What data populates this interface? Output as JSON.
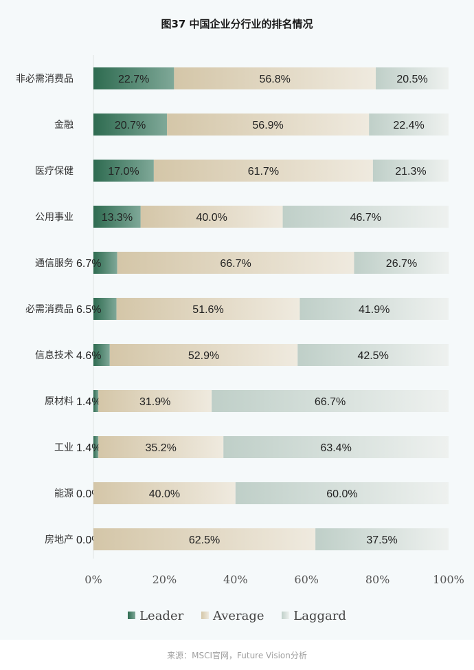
{
  "chart_data": {
    "type": "bar",
    "orientation": "horizontal",
    "stacked": true,
    "title": "图37 中国企业分行业的排名情况",
    "categories": [
      "非必需消费品",
      "金融",
      "医疗保健",
      "公用事业",
      "通信服务",
      "必需消费品",
      "信息技术",
      "原材料",
      "工业",
      "能源",
      "房地产"
    ],
    "series": [
      {
        "name": "Leader",
        "values": [
          22.7,
          20.7,
          17.0,
          13.3,
          6.7,
          6.5,
          4.6,
          1.4,
          1.4,
          0.0,
          0.0
        ],
        "color": "#3d7a60"
      },
      {
        "name": "Average",
        "values": [
          56.8,
          56.9,
          61.7,
          40.0,
          66.7,
          51.6,
          52.9,
          31.9,
          35.2,
          40.0,
          62.5
        ],
        "color": "#d9cdb5"
      },
      {
        "name": "Laggard",
        "values": [
          20.5,
          22.4,
          21.3,
          46.7,
          26.7,
          41.9,
          42.5,
          66.7,
          63.4,
          60.0,
          37.5
        ],
        "color": "#c5d3cd"
      }
    ],
    "labels": [
      [
        "22.7%",
        "56.8%",
        "20.5%"
      ],
      [
        "20.7%",
        "56.9%",
        "22.4%"
      ],
      [
        "17.0%",
        "61.7%",
        "21.3%"
      ],
      [
        "13.3%",
        "40.0%",
        "46.7%"
      ],
      [
        "6.7%",
        "66.7%",
        "26.7%"
      ],
      [
        "6.5%",
        "51.6%",
        "41.9%"
      ],
      [
        "4.6%",
        "52.9%",
        "42.5%"
      ],
      [
        "1.4%",
        "31.9%",
        "66.7%"
      ],
      [
        "1.4%",
        "35.2%",
        "63.4%"
      ],
      [
        "0.0%",
        "40.0%",
        "60.0%"
      ],
      [
        "0.0%",
        "62.5%",
        "37.5%"
      ]
    ],
    "xlim": [
      0,
      100
    ],
    "x_ticks": [
      "0%",
      "20%",
      "40%",
      "60%",
      "80%",
      "100%"
    ],
    "legend_position": "bottom",
    "grid": false
  },
  "legend": [
    "Leader",
    "Average",
    "Laggard"
  ],
  "source": "来源：MSCI官网，Future Vision分析"
}
